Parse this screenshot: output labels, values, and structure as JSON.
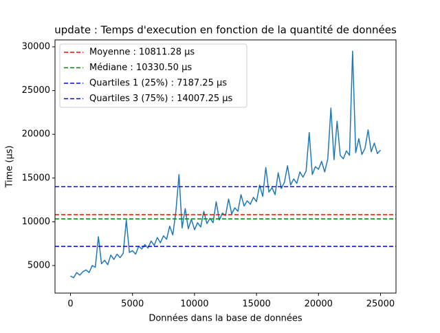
{
  "chart_data": {
    "type": "line",
    "title": "update : Temps d'execution en fonction de la quantité de données",
    "x_label": "Données dans la base de données",
    "y_label": "Time (µs)",
    "xlim": [
      -1250,
      26250
    ],
    "ylim": [
      1850,
      30790
    ],
    "xticks": [
      0,
      5000,
      10000,
      15000,
      20000,
      25000
    ],
    "yticks": [
      5000,
      10000,
      15000,
      20000,
      25000,
      30000
    ],
    "grid": false,
    "legend_position": "upper-left",
    "x": [
      0,
      250,
      500,
      750,
      1000,
      1250,
      1500,
      1750,
      2000,
      2250,
      2500,
      2750,
      3000,
      3250,
      3500,
      3750,
      4000,
      4250,
      4500,
      4750,
      5000,
      5250,
      5500,
      5750,
      6000,
      6250,
      6500,
      6750,
      7000,
      7250,
      7500,
      7750,
      8000,
      8250,
      8500,
      8750,
      9000,
      9250,
      9500,
      9750,
      10000,
      10250,
      10500,
      10750,
      11000,
      11250,
      11500,
      11750,
      12000,
      12250,
      12500,
      12750,
      13000,
      13250,
      13500,
      13750,
      14000,
      14250,
      14500,
      14750,
      15000,
      15250,
      15500,
      15750,
      16000,
      16250,
      16500,
      16750,
      17000,
      17250,
      17500,
      17750,
      18000,
      18250,
      18500,
      18750,
      19000,
      19250,
      19500,
      19750,
      20000,
      20250,
      20500,
      20750,
      21000,
      21250,
      21500,
      21750,
      22000,
      22250,
      22500,
      22750,
      23000,
      23250,
      23500,
      23750,
      24000,
      24250,
      24500,
      24750,
      25000
    ],
    "series": [
      {
        "color": "#1f77b4",
        "values": [
          3800,
          3600,
          4200,
          3900,
          4300,
          4500,
          4200,
          5000,
          4800,
          8300,
          5200,
          5600,
          5100,
          6200,
          5700,
          6300,
          5900,
          6400,
          10200,
          6500,
          6700,
          6300,
          7200,
          6900,
          7400,
          7000,
          7800,
          7300,
          8200,
          7600,
          8400,
          8000,
          9500,
          8500,
          11200,
          15400,
          9300,
          11500,
          9200,
          10300,
          9100,
          9900,
          9400,
          11200,
          9800,
          10400,
          9900,
          12300,
          10200,
          11000,
          10700,
          12600,
          10900,
          11600,
          11200,
          13100,
          11800,
          12400,
          12000,
          12800,
          12300,
          14200,
          12900,
          16200,
          13400,
          13900,
          13100,
          15600,
          13800,
          14500,
          16400,
          14200,
          14900,
          14400,
          15700,
          15100,
          15800,
          20200,
          15400,
          16300,
          16000,
          16900,
          15700,
          17200,
          23000,
          17100,
          21500,
          17600,
          17200,
          18100,
          17600,
          29500,
          17900,
          19500,
          17700,
          18400,
          20500,
          18000,
          19000,
          17800,
          18200
        ]
      }
    ],
    "hlines": [
      {
        "name": "Moyenne : 10811.28 µs",
        "value": 10811.28,
        "color": "#ff0000"
      },
      {
        "name": "Médiane : 10330.50 µs",
        "value": 10330.5,
        "color": "#008000"
      },
      {
        "name": "Quartiles 1 (25%) : 7187.25 µs",
        "value": 7187.25,
        "color": "#0000ff"
      },
      {
        "name": "Quartiles 3 (75%) : 14007.25 µs",
        "value": 14007.25,
        "color": "#0000ff"
      }
    ]
  }
}
